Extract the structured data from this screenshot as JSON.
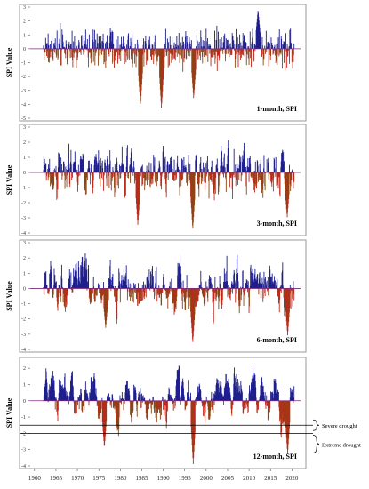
{
  "figure": {
    "ylabel": "SPI Value",
    "x_ticks": [
      "1960",
      "1965",
      "1970",
      "1975",
      "1980",
      "1985",
      "1990",
      "1995",
      "2000",
      "2005",
      "2010",
      "2015",
      "2020"
    ],
    "colors": {
      "positive": "#1f1f8f",
      "negative": "#c0281e",
      "negative_dark": "#8b4513",
      "frame": "#999999",
      "ref_line": "#000000"
    },
    "annotations": {
      "severe": "Severe drought",
      "extreme": "Extreme drought"
    }
  },
  "chart_data": [
    {
      "type": "bar",
      "title": "1-month, SPI",
      "ylabel": "SPI Value",
      "xlim": [
        1959,
        2022
      ],
      "ylim": [
        -5,
        3
      ],
      "y_ticks": [
        3,
        2,
        1,
        0,
        -1,
        -2,
        -3,
        -4,
        -5
      ],
      "series": [
        {
          "start": 1962.0,
          "end": 2020.5,
          "step": 0.0833,
          "amplitude": 1.0,
          "extremes": [
            [
              1984.6,
              -4.1
            ],
            [
              1989.5,
              -4.3
            ],
            [
              1997.0,
              -3.6
            ],
            [
              2012.0,
              2.8
            ]
          ]
        }
      ]
    },
    {
      "type": "bar",
      "title": "3-month, SPI",
      "ylabel": "SPI Value",
      "xlim": [
        1959,
        2022
      ],
      "ylim": [
        -4,
        3
      ],
      "y_ticks": [
        3,
        2,
        1,
        0,
        -1,
        -2,
        -3,
        -4
      ],
      "series": [
        {
          "start": 1962.0,
          "end": 2020.5,
          "step": 0.0833,
          "amplitude": 1.1,
          "extremes": [
            [
              1984.0,
              -3.5
            ],
            [
              1996.8,
              -3.8
            ],
            [
              2018.8,
              -3.0
            ]
          ]
        }
      ]
    },
    {
      "type": "bar",
      "title": "6-month, SPI",
      "ylabel": "SPI Value",
      "xlim": [
        1959,
        2022
      ],
      "ylim": [
        -4,
        3
      ],
      "y_ticks": [
        3,
        2,
        1,
        0,
        -1,
        -2,
        -3,
        -4
      ],
      "series": [
        {
          "start": 1962.0,
          "end": 2020.5,
          "step": 0.0833,
          "amplitude": 1.2,
          "extremes": [
            [
              1976.5,
              -2.6
            ],
            [
              1996.8,
              -3.6
            ],
            [
              2018.9,
              -3.1
            ]
          ]
        }
      ]
    },
    {
      "type": "bar",
      "title": "12-month, SPI",
      "ylabel": "SPI Value",
      "xlim": [
        1959,
        2022
      ],
      "ylim": [
        -4,
        2.5
      ],
      "y_ticks": [
        2,
        1,
        0,
        -1,
        -2,
        -3,
        -4
      ],
      "reference_lines": [
        -1.5,
        -2.0
      ],
      "series": [
        {
          "start": 1962.0,
          "end": 2020.5,
          "step": 0.0833,
          "amplitude": 1.25,
          "extremes": [
            [
              1976.2,
              -2.9
            ],
            [
              1996.9,
              -3.9
            ],
            [
              2018.9,
              -3.3
            ]
          ]
        }
      ]
    }
  ]
}
